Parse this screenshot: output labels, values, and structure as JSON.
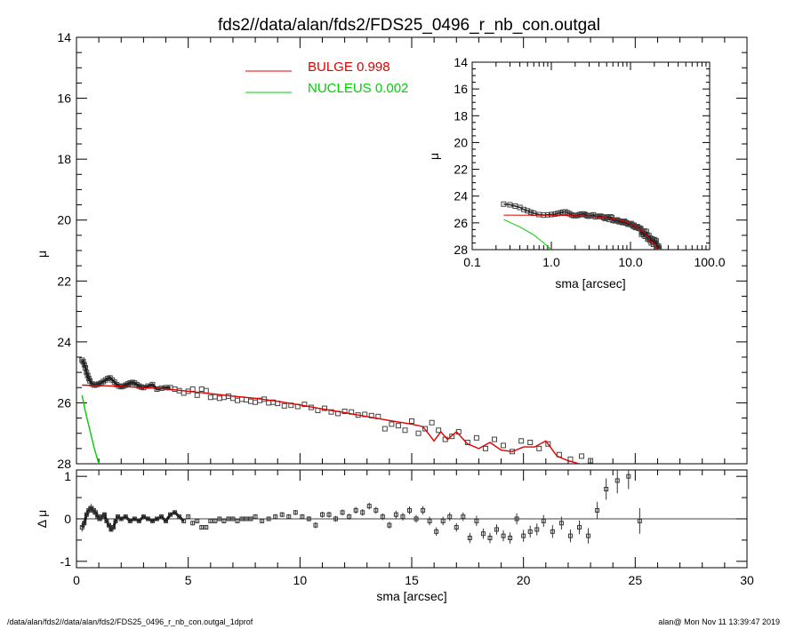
{
  "title": "fds2//data/alan/fds2/FDS25_0496_r_nb_con.outgal",
  "footer_left": "/data/alan/fds2//data/alan/fds2/FDS25_0496_r_nb_con.outgal_1dprof",
  "footer_right": "alan@  Mon Nov 11 13:39:47 2019",
  "colors": {
    "bulge": "#e00000",
    "nucleus": "#00d000",
    "data": "#000000"
  },
  "chart_data": [
    {
      "type": "scatter",
      "panel": "main",
      "xlabel": "",
      "ylabel": "μ",
      "xlim": [
        0,
        30
      ],
      "ylim": [
        28,
        14
      ],
      "yticks": [
        "14",
        "16",
        "18",
        "20",
        "22",
        "24",
        "26",
        "28"
      ],
      "legend": [
        {
          "name": "BULGE",
          "value": "0.998"
        },
        {
          "name": "NUCLEUS",
          "value": "0.002"
        }
      ],
      "data_x": [
        0.25,
        0.3,
        0.35,
        0.4,
        0.45,
        0.5,
        0.55,
        0.6,
        0.7,
        0.8,
        0.9,
        1.0,
        1.1,
        1.2,
        1.3,
        1.4,
        1.5,
        1.6,
        1.7,
        1.8,
        1.9,
        2.0,
        2.1,
        2.2,
        2.3,
        2.4,
        2.5,
        2.6,
        2.7,
        2.8,
        2.9,
        3.0,
        3.2,
        3.4,
        3.6,
        3.8,
        4.0,
        4.2,
        4.4,
        4.6,
        4.8,
        5.0,
        5.2,
        5.4,
        5.6,
        5.8,
        6.0,
        6.2,
        6.4,
        6.6,
        6.8,
        7.0,
        7.2,
        7.4,
        7.6,
        7.8,
        8.0,
        8.2,
        8.4,
        8.6,
        8.8,
        9.0,
        9.3,
        9.6,
        9.9,
        10.2,
        10.5,
        10.8,
        11.1,
        11.4,
        11.7,
        12.0,
        12.3,
        12.6,
        12.9,
        13.2,
        13.5,
        13.8,
        14.1,
        14.4,
        14.7,
        15.0,
        15.3,
        15.6,
        15.9,
        16.2,
        16.5,
        16.8,
        17.1,
        17.5,
        17.9,
        18.3,
        18.7,
        19.1,
        19.5,
        19.9,
        20.3,
        20.7,
        21.1,
        21.6,
        22.1,
        22.6,
        23.0
      ],
      "data_y": [
        24.6,
        24.65,
        24.75,
        24.85,
        25.0,
        25.1,
        25.2,
        25.28,
        25.38,
        25.42,
        25.4,
        25.38,
        25.35,
        25.3,
        25.25,
        25.2,
        25.18,
        25.25,
        25.32,
        25.4,
        25.45,
        25.47,
        25.45,
        25.42,
        25.38,
        25.35,
        25.33,
        25.35,
        25.4,
        25.45,
        25.48,
        25.5,
        25.45,
        25.4,
        25.55,
        25.52,
        25.5,
        25.5,
        25.55,
        25.6,
        25.68,
        25.62,
        25.55,
        25.75,
        25.55,
        25.6,
        25.82,
        25.8,
        25.85,
        25.82,
        25.78,
        25.85,
        25.92,
        25.88,
        25.9,
        25.95,
        25.98,
        25.92,
        25.88,
        26.0,
        25.98,
        26.02,
        26.1,
        26.08,
        26.12,
        26.05,
        26.15,
        26.25,
        26.18,
        26.3,
        26.35,
        26.28,
        26.3,
        26.4,
        26.38,
        26.42,
        26.45,
        26.85,
        26.7,
        26.75,
        26.9,
        26.6,
        27.0,
        26.85,
        26.65,
        26.9,
        27.2,
        27.1,
        26.95,
        27.3,
        27.15,
        27.5,
        27.2,
        27.4,
        27.6,
        27.25,
        27.3,
        27.5,
        27.35,
        27.7,
        27.85,
        27.75,
        27.9
      ],
      "bulge_x": [
        0.25,
        1,
        2,
        3,
        4,
        5,
        6,
        7,
        8,
        9,
        10,
        11,
        12,
        13,
        14,
        15,
        15.5,
        16,
        16.3,
        16.6,
        17,
        17.5,
        18,
        18.5,
        19,
        19.5,
        20,
        20.5,
        21,
        21.5,
        22,
        22.5,
        23
      ],
      "bulge_y": [
        25.42,
        25.43,
        25.46,
        25.5,
        25.54,
        25.62,
        25.7,
        25.78,
        25.85,
        25.95,
        26.07,
        26.2,
        26.32,
        26.45,
        26.58,
        26.7,
        26.78,
        27.25,
        26.95,
        27.2,
        26.95,
        27.35,
        27.5,
        27.3,
        27.55,
        27.6,
        27.45,
        27.45,
        27.25,
        27.75,
        27.9,
        28.0,
        28.05
      ],
      "nucleus_x": [
        0.25,
        0.4,
        0.6,
        0.8,
        1.0
      ],
      "nucleus_y": [
        25.75,
        26.3,
        26.9,
        27.5,
        28.0
      ]
    },
    {
      "type": "scatter",
      "panel": "inset",
      "xlabel": "sma [arcsec]",
      "ylabel": "μ",
      "xscale": "log",
      "xlim": [
        0.1,
        100
      ],
      "ylim": [
        28,
        14
      ],
      "xticks": [
        "0.1",
        "1.0",
        "10.0",
        "100.0"
      ],
      "yticks": [
        "14",
        "16",
        "18",
        "20",
        "22",
        "24",
        "26",
        "28"
      ],
      "nucleus_x": [
        0.25,
        0.4,
        0.6,
        0.8,
        1.0
      ],
      "nucleus_y": [
        25.75,
        26.3,
        26.9,
        27.5,
        28.0
      ],
      "bulge_x": [
        0.25,
        0.6,
        1,
        2,
        3,
        5,
        8,
        10,
        12,
        15,
        18,
        20,
        22
      ],
      "bulge_y": [
        25.42,
        25.43,
        25.43,
        25.46,
        25.5,
        25.62,
        25.85,
        26.07,
        26.32,
        26.7,
        27.4,
        27.5,
        28.0
      ]
    },
    {
      "type": "scatter",
      "panel": "residual",
      "xlabel": "sma [arcsec]",
      "ylabel": "Δ μ",
      "xlim": [
        0,
        30
      ],
      "ylim": [
        -1.15,
        1.15
      ],
      "xticks": [
        "0",
        "5",
        "10",
        "15",
        "20",
        "25",
        "30"
      ],
      "yticks": [
        "1",
        "0",
        "-1"
      ],
      "x": [
        0.25,
        0.35,
        0.45,
        0.55,
        0.65,
        0.75,
        0.85,
        0.95,
        1.05,
        1.15,
        1.25,
        1.35,
        1.45,
        1.55,
        1.65,
        1.75,
        1.85,
        2.0,
        2.2,
        2.4,
        2.6,
        2.8,
        3.0,
        3.2,
        3.4,
        3.6,
        3.8,
        4.0,
        4.2,
        4.4,
        4.6,
        4.8,
        5.0,
        5.2,
        5.4,
        5.6,
        5.8,
        6.0,
        6.2,
        6.4,
        6.6,
        6.8,
        7.0,
        7.2,
        7.4,
        7.6,
        7.8,
        8.0,
        8.3,
        8.6,
        8.9,
        9.2,
        9.5,
        9.8,
        10.1,
        10.4,
        10.7,
        11.0,
        11.3,
        11.6,
        11.9,
        12.2,
        12.5,
        12.8,
        13.1,
        13.4,
        13.7,
        14.0,
        14.3,
        14.6,
        14.9,
        15.2,
        15.5,
        15.8,
        16.1,
        16.4,
        16.7,
        17.0,
        17.3,
        17.6,
        17.9,
        18.2,
        18.5,
        18.8,
        19.1,
        19.4,
        19.7,
        20.0,
        20.3,
        20.6,
        20.9,
        21.3,
        21.7,
        22.1,
        22.5,
        22.9,
        23.3,
        23.7,
        24.2,
        24.7,
        25.2
      ],
      "y": [
        -0.2,
        -0.1,
        0.1,
        0.2,
        0.25,
        0.2,
        0.15,
        0.05,
        0.0,
        0.05,
        0.1,
        -0.05,
        -0.15,
        -0.25,
        -0.2,
        -0.05,
        0.05,
        0.0,
        0.05,
        -0.05,
        0.0,
        -0.05,
        0.05,
        0.0,
        -0.05,
        0.0,
        0.05,
        -0.05,
        0.1,
        0.15,
        0.05,
        -0.05,
        0.05,
        -0.1,
        -0.05,
        -0.2,
        -0.2,
        -0.05,
        -0.05,
        0.0,
        -0.05,
        0.0,
        0.0,
        -0.05,
        0.0,
        0.0,
        0.0,
        0.05,
        -0.05,
        0.0,
        0.05,
        0.1,
        0.05,
        0.15,
        0.05,
        0.0,
        -0.15,
        0.1,
        0.1,
        0.0,
        0.15,
        0.05,
        0.2,
        0.15,
        0.3,
        0.2,
        0.05,
        -0.15,
        0.1,
        0.05,
        0.2,
        0.0,
        0.2,
        -0.05,
        -0.3,
        -0.05,
        0.05,
        -0.2,
        0.05,
        -0.45,
        -0.05,
        -0.35,
        -0.45,
        -0.25,
        -0.4,
        -0.45,
        0.0,
        -0.4,
        -0.3,
        -0.25,
        -0.05,
        -0.3,
        -0.1,
        -0.4,
        -0.2,
        -0.4,
        0.2,
        0.7,
        0.9,
        1.0,
        -0.05
      ],
      "err": [
        0.1,
        0.1,
        0.1,
        0.1,
        0.1,
        0.1,
        0.1,
        0.1,
        0.05,
        0.05,
        0.05,
        0.05,
        0.05,
        0.05,
        0.05,
        0.05,
        0.05,
        0.05,
        0.05,
        0.05,
        0.05,
        0.05,
        0.05,
        0.05,
        0.05,
        0.05,
        0.05,
        0.05,
        0.05,
        0.05,
        0.05,
        0.05,
        0.05,
        0.05,
        0.05,
        0.05,
        0.05,
        0.05,
        0.05,
        0.05,
        0.05,
        0.05,
        0.05,
        0.05,
        0.05,
        0.05,
        0.05,
        0.05,
        0.05,
        0.05,
        0.06,
        0.06,
        0.06,
        0.06,
        0.06,
        0.06,
        0.07,
        0.07,
        0.07,
        0.07,
        0.07,
        0.07,
        0.08,
        0.08,
        0.08,
        0.08,
        0.08,
        0.08,
        0.09,
        0.09,
        0.09,
        0.09,
        0.1,
        0.1,
        0.1,
        0.1,
        0.1,
        0.1,
        0.1,
        0.12,
        0.12,
        0.12,
        0.12,
        0.12,
        0.13,
        0.13,
        0.13,
        0.14,
        0.14,
        0.14,
        0.14,
        0.15,
        0.15,
        0.15,
        0.16,
        0.18,
        0.2,
        0.25,
        0.3,
        0.3,
        0.3
      ]
    }
  ]
}
